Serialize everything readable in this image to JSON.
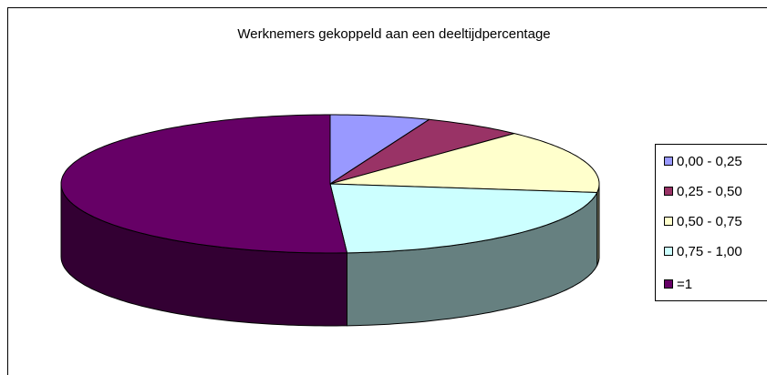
{
  "chart_data": {
    "type": "pie",
    "title": "Werknemers gekoppeld aan een deeltijdpercentage",
    "categories": [
      "0,00 - 0,25",
      "0,25 - 0,50",
      "0,50 - 0,75",
      "0,75 - 1,00",
      "=1"
    ],
    "values": [
      6,
      6,
      15,
      22,
      51
    ],
    "colors": [
      "#9999ff",
      "#993366",
      "#ffffcc",
      "#ccffff",
      "#660066"
    ],
    "legend": "right"
  }
}
